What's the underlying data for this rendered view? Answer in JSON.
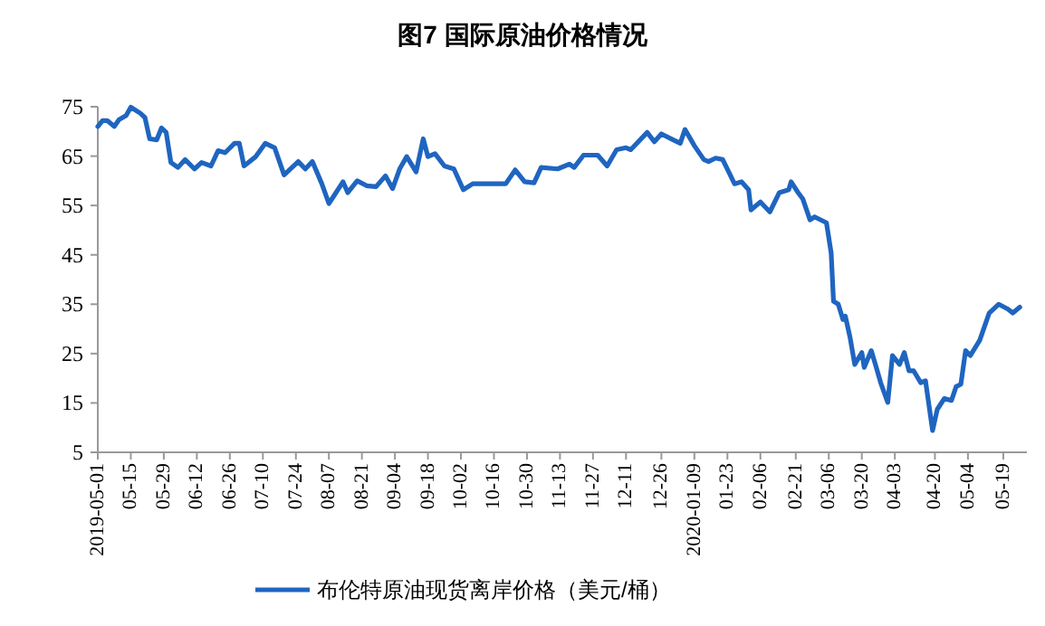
{
  "chart_data": {
    "type": "line",
    "title": "图7  国际原油价格情况",
    "legend": "bottom",
    "marker": "none",
    "line_style": "solid",
    "grid": false,
    "xlim": [
      "2019-05-01",
      "2020-05-29"
    ],
    "xticks": [
      {
        "value": "2019-05-01",
        "label": "2019-05-01"
      },
      {
        "value": "2019-05-15",
        "label": "05-15"
      },
      {
        "value": "2019-05-29",
        "label": "05-29"
      },
      {
        "value": "2019-06-12",
        "label": "06-12"
      },
      {
        "value": "2019-06-26",
        "label": "06-26"
      },
      {
        "value": "2019-07-10",
        "label": "07-10"
      },
      {
        "value": "2019-07-24",
        "label": "07-24"
      },
      {
        "value": "2019-08-07",
        "label": "08-07"
      },
      {
        "value": "2019-08-21",
        "label": "08-21"
      },
      {
        "value": "2019-09-04",
        "label": "09-04"
      },
      {
        "value": "2019-09-18",
        "label": "09-18"
      },
      {
        "value": "2019-10-02",
        "label": "10-02"
      },
      {
        "value": "2019-10-16",
        "label": "10-16"
      },
      {
        "value": "2019-10-30",
        "label": "10-30"
      },
      {
        "value": "2019-11-13",
        "label": "11-13"
      },
      {
        "value": "2019-11-27",
        "label": "11-27"
      },
      {
        "value": "2019-12-11",
        "label": "12-11"
      },
      {
        "value": "2019-12-26",
        "label": "12-26"
      },
      {
        "value": "2020-01-09",
        "label": "2020-01-09"
      },
      {
        "value": "2020-01-23",
        "label": "01-23"
      },
      {
        "value": "2020-02-06",
        "label": "02-06"
      },
      {
        "value": "2020-02-21",
        "label": "02-21"
      },
      {
        "value": "2020-03-06",
        "label": "03-06"
      },
      {
        "value": "2020-03-20",
        "label": "03-20"
      },
      {
        "value": "2020-04-03",
        "label": "04-03"
      },
      {
        "value": "2020-04-20",
        "label": "04-20"
      },
      {
        "value": "2020-05-04",
        "label": "05-04"
      },
      {
        "value": "2020-05-19",
        "label": "05-19"
      }
    ],
    "ylim": [
      5,
      75
    ],
    "yticks": [
      5,
      15,
      25,
      35,
      45,
      55,
      65,
      75
    ],
    "series": [
      {
        "name": "布伦特原油现货离岸价格（美元/桶）",
        "color": "#1f65c0",
        "x": [
          "2019-05-01",
          "2019-05-03",
          "2019-05-05",
          "2019-05-08",
          "2019-05-10",
          "2019-05-13",
          "2019-05-15",
          "2019-05-19",
          "2019-05-21",
          "2019-05-23",
          "2019-05-26",
          "2019-05-28",
          "2019-05-30",
          "2019-06-01",
          "2019-06-04",
          "2019-06-07",
          "2019-06-11",
          "2019-06-14",
          "2019-06-18",
          "2019-06-21",
          "2019-06-24",
          "2019-06-28",
          "2019-06-30",
          "2019-07-02",
          "2019-07-07",
          "2019-07-11",
          "2019-07-15",
          "2019-07-19",
          "2019-07-25",
          "2019-07-28",
          "2019-07-31",
          "2019-08-04",
          "2019-08-07",
          "2019-08-10",
          "2019-08-13",
          "2019-08-15",
          "2019-08-19",
          "2019-08-23",
          "2019-08-27",
          "2019-08-31",
          "2019-09-03",
          "2019-09-06",
          "2019-09-09",
          "2019-09-13",
          "2019-09-16",
          "2019-09-18",
          "2019-09-21",
          "2019-09-25",
          "2019-09-29",
          "2019-10-03",
          "2019-10-07",
          "2019-10-12",
          "2019-10-16",
          "2019-10-21",
          "2019-10-25",
          "2019-10-29",
          "2019-11-02",
          "2019-11-05",
          "2019-11-12",
          "2019-11-17",
          "2019-11-19",
          "2019-11-23",
          "2019-11-29",
          "2019-12-03",
          "2019-12-07",
          "2019-12-11",
          "2019-12-13",
          "2019-12-20",
          "2019-12-23",
          "2019-12-26",
          "2019-12-31",
          "2020-01-03",
          "2020-01-05",
          "2020-01-09",
          "2020-01-13",
          "2020-01-15",
          "2020-01-18",
          "2020-01-21",
          "2020-01-26",
          "2020-01-29",
          "2020-02-01",
          "2020-02-02",
          "2020-02-06",
          "2020-02-10",
          "2020-02-14",
          "2020-02-18",
          "2020-02-19",
          "2020-02-22",
          "2020-02-24",
          "2020-02-27",
          "2020-02-29",
          "2020-03-05",
          "2020-03-07",
          "2020-03-08",
          "2020-03-10",
          "2020-03-12",
          "2020-03-13",
          "2020-03-15",
          "2020-03-17",
          "2020-03-20",
          "2020-03-21",
          "2020-03-24",
          "2020-03-26",
          "2020-03-28",
          "2020-03-31",
          "2020-04-02",
          "2020-04-05",
          "2020-04-07",
          "2020-04-09",
          "2020-04-11",
          "2020-04-14",
          "2020-04-16",
          "2020-04-19",
          "2020-04-21",
          "2020-04-24",
          "2020-04-27",
          "2020-04-29",
          "2020-05-01",
          "2020-05-03",
          "2020-05-05",
          "2020-05-09",
          "2020-05-13",
          "2020-05-17",
          "2020-05-21",
          "2020-05-23",
          "2020-05-26"
        ],
        "values": [
          71.0,
          72.2,
          72.2,
          71.0,
          72.4,
          73.2,
          74.9,
          73.7,
          72.8,
          68.5,
          68.3,
          70.7,
          69.8,
          63.7,
          62.7,
          64.3,
          62.4,
          63.7,
          63.0,
          66.1,
          65.7,
          67.6,
          67.6,
          63.0,
          64.9,
          67.6,
          66.7,
          61.2,
          63.9,
          62.4,
          63.9,
          59.4,
          55.4,
          57.6,
          59.8,
          57.6,
          60.0,
          59.0,
          58.8,
          61.0,
          58.4,
          62.4,
          64.9,
          61.8,
          68.5,
          64.9,
          65.5,
          63.0,
          62.4,
          58.2,
          59.4,
          59.4,
          59.4,
          59.4,
          62.2,
          59.8,
          59.6,
          62.7,
          62.4,
          63.4,
          62.7,
          65.2,
          65.2,
          63.0,
          66.3,
          66.7,
          66.3,
          69.8,
          67.9,
          69.5,
          68.3,
          67.6,
          70.4,
          67.1,
          64.3,
          63.9,
          64.6,
          64.3,
          59.4,
          59.8,
          58.2,
          54.1,
          55.7,
          53.7,
          57.6,
          58.2,
          59.8,
          57.6,
          56.3,
          52.1,
          52.7,
          51.5,
          45.4,
          35.6,
          35.0,
          31.9,
          32.6,
          28.3,
          22.8,
          25.2,
          22.2,
          25.6,
          22.4,
          19.1,
          15.1,
          24.6,
          22.8,
          25.2,
          21.5,
          21.5,
          19.1,
          19.5,
          9.4,
          13.7,
          15.9,
          15.5,
          18.3,
          18.8,
          25.6,
          24.6,
          27.7,
          33.2,
          35.0,
          34.0,
          33.2,
          34.4
        ]
      }
    ]
  }
}
